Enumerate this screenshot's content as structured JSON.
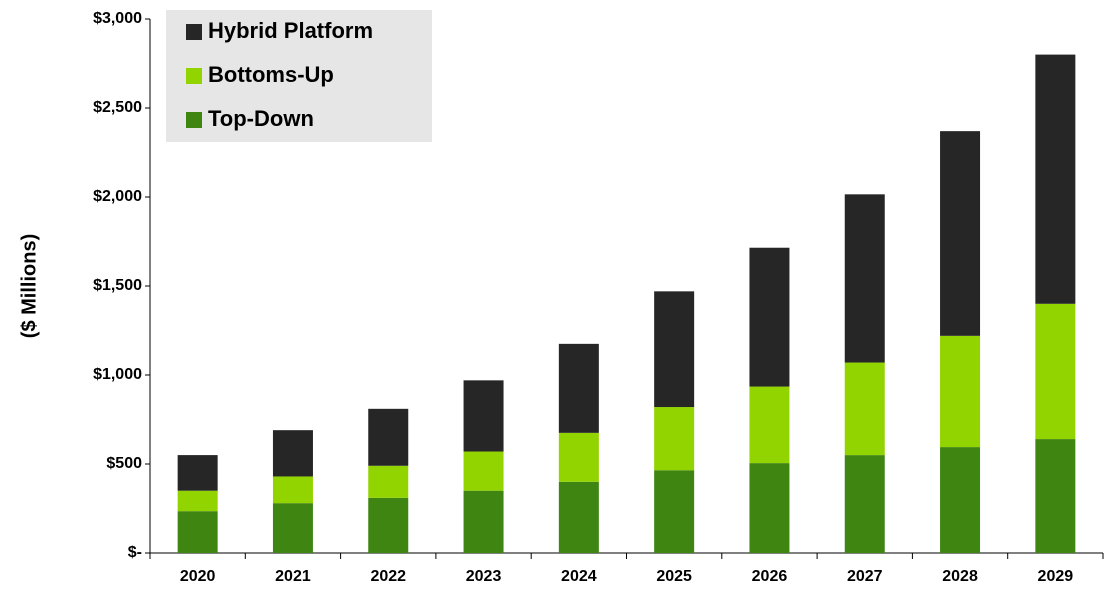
{
  "chart_data": {
    "type": "bar",
    "stacked": true,
    "y_label": "($ Millions)",
    "categories": [
      "2020",
      "2021",
      "2022",
      "2023",
      "2024",
      "2025",
      "2026",
      "2027",
      "2028",
      "2029"
    ],
    "series": [
      {
        "name": "Top-Down",
        "color": "#3f8512",
        "values": [
          235,
          280,
          310,
          350,
          400,
          465,
          505,
          550,
          595,
          640
        ]
      },
      {
        "name": "Bottoms-Up",
        "color": "#92d400",
        "values": [
          115,
          150,
          180,
          220,
          275,
          355,
          430,
          520,
          625,
          760
        ]
      },
      {
        "name": "Hybrid Platform",
        "color": "#262626",
        "values": [
          200,
          260,
          320,
          400,
          500,
          650,
          780,
          945,
          1150,
          1400
        ]
      }
    ],
    "ylim": [
      0,
      3000
    ],
    "yticks": [
      {
        "value": 0,
        "label": "$-"
      },
      {
        "value": 500,
        "label": "$500"
      },
      {
        "value": 1000,
        "label": "$1,000"
      },
      {
        "value": 1500,
        "label": "$1,500"
      },
      {
        "value": 2000,
        "label": "$2,000"
      },
      {
        "value": 2500,
        "label": "$2,500"
      },
      {
        "value": 3000,
        "label": "$3,000"
      }
    ],
    "legend": "upper left"
  }
}
